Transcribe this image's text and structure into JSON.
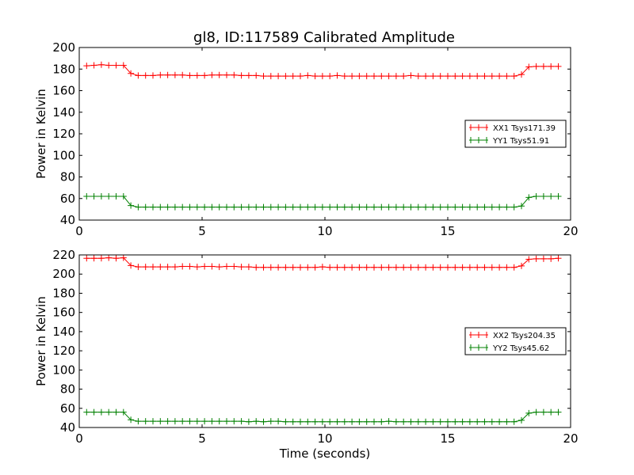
{
  "figure": {
    "title": "gl8, ID:117589 Calibrated Amplitude",
    "xlabel": "Time (seconds)"
  },
  "chart_data": [
    {
      "type": "line",
      "title": "gl8, ID:117589 Calibrated Amplitude",
      "xlabel": "",
      "ylabel": "Power in Kelvin",
      "xlim": [
        0,
        20
      ],
      "ylim": [
        40,
        200
      ],
      "xticks": [
        0,
        5,
        10,
        15,
        20
      ],
      "yticks": [
        40,
        60,
        80,
        100,
        120,
        140,
        160,
        180,
        200
      ],
      "grid": false,
      "legend_position": "right",
      "x": [
        0.3,
        0.6,
        0.9,
        1.2,
        1.5,
        1.8,
        2.1,
        2.4,
        2.7,
        3.0,
        3.3,
        3.6,
        3.9,
        4.2,
        4.5,
        4.8,
        5.1,
        5.4,
        5.7,
        6.0,
        6.3,
        6.6,
        6.9,
        7.2,
        7.5,
        7.8,
        8.1,
        8.4,
        8.7,
        9.0,
        9.3,
        9.6,
        9.9,
        10.2,
        10.5,
        10.8,
        11.1,
        11.4,
        11.7,
        12.0,
        12.3,
        12.6,
        12.9,
        13.2,
        13.5,
        13.8,
        14.1,
        14.4,
        14.7,
        15.0,
        15.3,
        15.6,
        15.9,
        16.2,
        16.5,
        16.8,
        17.1,
        17.4,
        17.7,
        18.0,
        18.3,
        18.6,
        18.9,
        19.2,
        19.5
      ],
      "series": [
        {
          "name": "XX1 Tsys171.39",
          "color": "#ff0000",
          "values": [
            183,
            183.5,
            184,
            183.5,
            183.5,
            183.5,
            176,
            174,
            174,
            174,
            174.5,
            174.5,
            174.5,
            174.5,
            174,
            174,
            174,
            174.5,
            174.5,
            174.5,
            174.5,
            174,
            174,
            174,
            173.5,
            173.5,
            173.5,
            173.5,
            173.5,
            173.5,
            174,
            173.5,
            173.5,
            173.5,
            174,
            173.5,
            173.5,
            173.5,
            173.5,
            173.5,
            173.5,
            173.5,
            173.5,
            173.5,
            174,
            173.5,
            173.5,
            173.5,
            173.5,
            173.5,
            173.5,
            173.5,
            173.5,
            173.5,
            173.5,
            173.5,
            173.5,
            173.5,
            173.5,
            175,
            182,
            182.5,
            182.5,
            182.5,
            182.5
          ]
        },
        {
          "name": "YY1 Tsys51.91",
          "color": "#008000",
          "values": [
            62,
            62,
            62,
            62,
            62,
            62,
            53.5,
            52,
            52,
            52,
            52,
            52,
            52,
            52,
            52,
            52,
            52,
            52,
            52,
            52,
            52,
            52,
            52,
            52,
            52,
            52,
            52,
            52,
            52,
            52,
            52,
            52,
            52,
            52,
            52,
            52,
            52,
            52,
            52,
            52,
            52,
            52,
            52,
            52,
            52,
            52,
            52,
            52,
            52,
            52,
            52,
            52,
            52,
            52,
            52,
            52,
            52,
            52,
            52,
            53,
            61,
            62,
            62,
            62,
            62
          ]
        }
      ]
    },
    {
      "type": "line",
      "title": "",
      "xlabel": "Time (seconds)",
      "ylabel": "Power in Kelvin",
      "xlim": [
        0,
        20
      ],
      "ylim": [
        40,
        220
      ],
      "xticks": [
        0,
        5,
        10,
        15,
        20
      ],
      "yticks": [
        40,
        60,
        80,
        100,
        120,
        140,
        160,
        180,
        200,
        220
      ],
      "grid": false,
      "legend_position": "right",
      "x": [
        0.3,
        0.6,
        0.9,
        1.2,
        1.5,
        1.8,
        2.1,
        2.4,
        2.7,
        3.0,
        3.3,
        3.6,
        3.9,
        4.2,
        4.5,
        4.8,
        5.1,
        5.4,
        5.7,
        6.0,
        6.3,
        6.6,
        6.9,
        7.2,
        7.5,
        7.8,
        8.1,
        8.4,
        8.7,
        9.0,
        9.3,
        9.6,
        9.9,
        10.2,
        10.5,
        10.8,
        11.1,
        11.4,
        11.7,
        12.0,
        12.3,
        12.6,
        12.9,
        13.2,
        13.5,
        13.8,
        14.1,
        14.4,
        14.7,
        15.0,
        15.3,
        15.6,
        15.9,
        16.2,
        16.5,
        16.8,
        17.1,
        17.4,
        17.7,
        18.0,
        18.3,
        18.6,
        18.9,
        19.2,
        19.5
      ],
      "series": [
        {
          "name": "XX2 Tsys204.35",
          "color": "#ff0000",
          "values": [
            216.5,
            216.5,
            216.5,
            217,
            216.5,
            217,
            209,
            207.5,
            207.5,
            207.5,
            207.5,
            207.5,
            207.5,
            208,
            208,
            207.5,
            208,
            208,
            207.5,
            208,
            208,
            207.5,
            207.5,
            207,
            207,
            207,
            207,
            207,
            207,
            207,
            207,
            207,
            207.5,
            207,
            207,
            207,
            207,
            207,
            207,
            207,
            207,
            207,
            207,
            207,
            207,
            207,
            207,
            207,
            207,
            207,
            207,
            207,
            207,
            207,
            207,
            207,
            207,
            207,
            207,
            208.5,
            215.5,
            216,
            216,
            216,
            216.5
          ]
        },
        {
          "name": "YY2 Tsys45.62",
          "color": "#008000",
          "values": [
            56,
            56,
            56,
            56,
            56,
            56,
            48,
            46.5,
            46.5,
            46.5,
            46.5,
            46.5,
            46.5,
            46.5,
            46.5,
            46.5,
            46.5,
            46.5,
            46.5,
            46.5,
            46.5,
            46.5,
            46,
            46.5,
            46,
            46.5,
            46.5,
            46,
            46,
            46,
            46,
            46,
            46,
            46,
            46,
            46,
            46,
            46,
            46,
            46,
            46,
            46.5,
            46,
            46,
            46,
            46,
            46,
            46,
            46,
            46,
            46,
            46,
            46,
            46,
            46,
            46,
            46,
            46,
            46,
            47.5,
            55,
            56,
            56,
            56,
            56
          ]
        }
      ]
    }
  ]
}
